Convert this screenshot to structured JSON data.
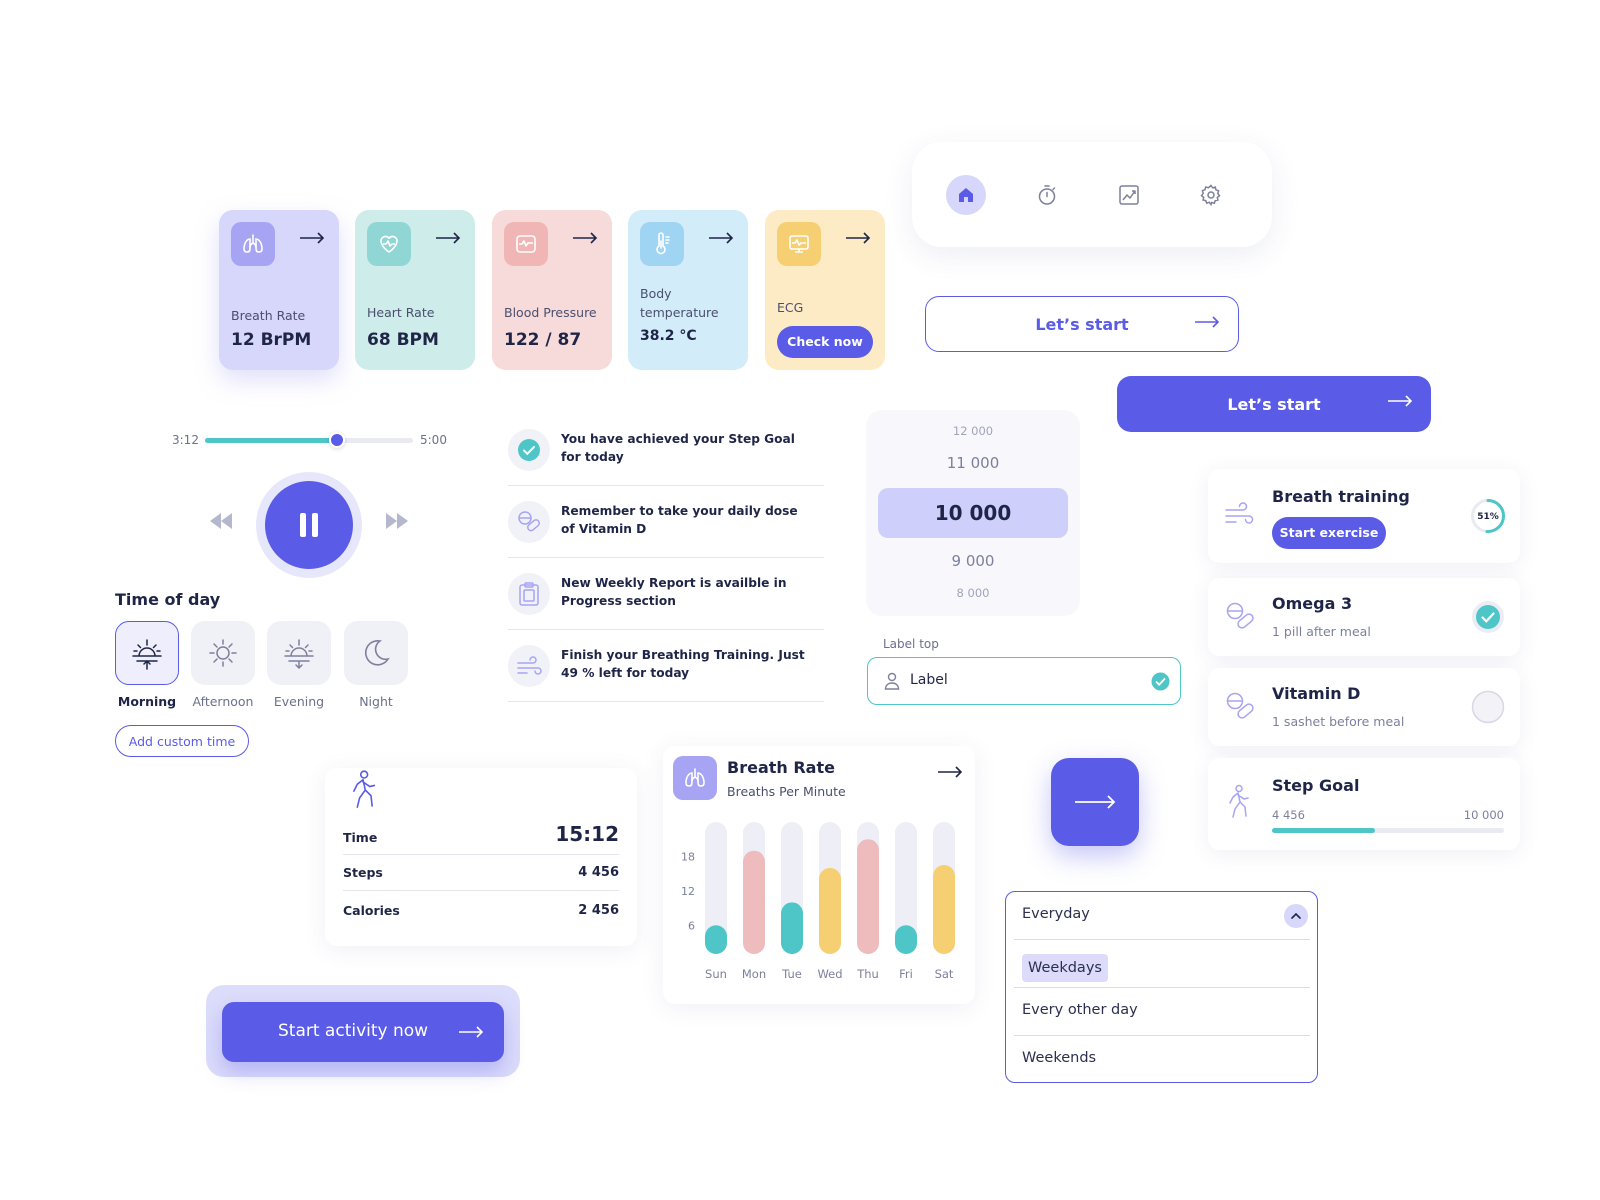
{
  "metrics": [
    {
      "label": "Breath Rate",
      "value": "12 BrPM",
      "icon": "lungs-icon",
      "bg": "#d7d6fb",
      "iconbg": "#a7a4f3"
    },
    {
      "label": "Heart Rate",
      "value": "68 BPM",
      "icon": "heart-icon",
      "bg": "#cdecea",
      "iconbg": "#8fd6d4"
    },
    {
      "label": "Blood Pressure",
      "value": "122 / 87",
      "icon": "pressure-monitor-icon",
      "bg": "#f7dada",
      "iconbg": "#f0b6b6"
    },
    {
      "label": "Body temperature",
      "value": "38.2 °C",
      "icon": "thermometer-icon",
      "bg": "#d3ecfa",
      "iconbg": "#9fd4f2"
    },
    {
      "label": "ECG",
      "button": "Check now",
      "icon": "ecg-monitor-icon",
      "bg": "#fcebc4",
      "iconbg": "#f5cf72"
    }
  ],
  "nav": [
    "home-icon",
    "stopwatch-icon",
    "chart-icon",
    "gear-icon"
  ],
  "buttons": {
    "outline": "Let’s start",
    "solid": "Let’s start"
  },
  "player": {
    "current": "3:12",
    "total": "5:00",
    "progress": 0.636
  },
  "time_of_day": {
    "title": "Time of day",
    "options": [
      "Morning",
      "Afternoon",
      "Evening",
      "Night"
    ],
    "selected": "Morning",
    "add_button": "Add custom time"
  },
  "notifications": [
    {
      "icon": "check-icon",
      "text": "You have achieved your Step Goal for today"
    },
    {
      "icon": "pill-icon",
      "text": "Remember to take your daily dose of Vitamin D"
    },
    {
      "icon": "clipboard-icon",
      "text": "New Weekly Report is availble in Progress section"
    },
    {
      "icon": "wind-icon",
      "text": "Finish your Breathing Training. Just 49 % left for today"
    }
  ],
  "picker": {
    "values": [
      "12 000",
      "11 000",
      "10 000",
      "9 000",
      "8 000"
    ],
    "selected": "10 000"
  },
  "input": {
    "label": "Label top",
    "value": "Label"
  },
  "reminders": {
    "breath": {
      "title": "Breath training",
      "button": "Start exercise",
      "percent": "51%",
      "progress": 0.51
    },
    "omega": {
      "title": "Omega 3",
      "subtitle": "1 pill after meal",
      "done": true
    },
    "vitd": {
      "title": "Vitamin D",
      "subtitle": "1 sashet before meal",
      "done": false
    },
    "steps": {
      "title": "Step Goal",
      "current": "4 456",
      "goal": "10 000",
      "progress": 0.4456
    }
  },
  "activity": {
    "rows": [
      {
        "label": "Time",
        "value": "15:12"
      },
      {
        "label": "Steps",
        "value": "4 456"
      },
      {
        "label": "Calories",
        "value": "2 456"
      }
    ]
  },
  "chart_card": {
    "title": "Breath Rate",
    "subtitle": "Breaths Per Minute"
  },
  "chart_data": {
    "type": "bar",
    "title": "Breath Rate",
    "subtitle": "Breaths Per Minute",
    "categories": [
      "Sun",
      "Mon",
      "Tue",
      "Wed",
      "Thu",
      "Fri",
      "Sat"
    ],
    "values": [
      6,
      19,
      10,
      16,
      21,
      6,
      16.5
    ],
    "yticks": [
      6,
      12,
      18
    ],
    "ylim": [
      1,
      24
    ],
    "colors": [
      "#4ec6c8",
      "#eebcbc",
      "#4ec6c8",
      "#f5cf72",
      "#eebcbc",
      "#4ec6c8",
      "#f5cf72"
    ],
    "track_color": "#eeeff6",
    "grid": false
  },
  "dropdown": {
    "selected": "Everyday",
    "options": [
      "Weekdays",
      "Every other day",
      "Weekends"
    ],
    "highlighted": "Weekdays"
  },
  "start_activity": "Start activity now",
  "colors": {
    "primary": "#5a5be6",
    "teal": "#4ec6c8",
    "text": "#1f2547",
    "muted": "#7c809c"
  }
}
